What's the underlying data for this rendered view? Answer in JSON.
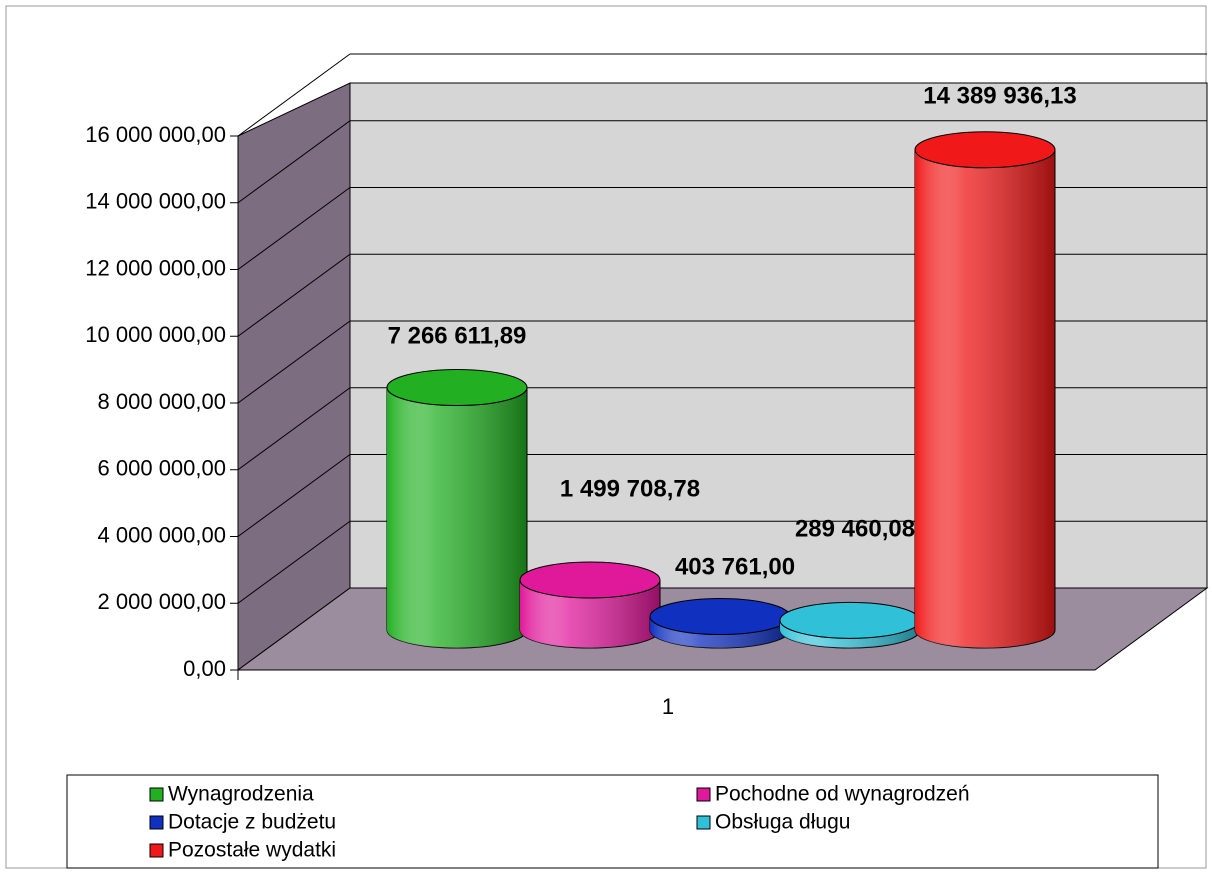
{
  "chart_data": {
    "type": "bar3d-cylinder",
    "categories": [
      "1"
    ],
    "series": [
      {
        "name": "Wynagrodzenia",
        "color": "#22b022",
        "values": [
          7266611.89
        ],
        "value_labels": [
          "7 266 611,89"
        ]
      },
      {
        "name": "Pochodne od wynagrodzeń",
        "color": "#e0189a",
        "values": [
          1499708.78
        ],
        "value_labels": [
          "1 499 708,78"
        ]
      },
      {
        "name": "Dotacje z budżetu",
        "color": "#1030c0",
        "values": [
          403761.0
        ],
        "value_labels": [
          "403 761,00"
        ]
      },
      {
        "name": "Obsługa długu",
        "color": "#30c0d8",
        "values": [
          289460.08
        ],
        "value_labels": [
          "289 460,08"
        ]
      },
      {
        "name": "Pozostałe wydatki",
        "color": "#f01818",
        "values": [
          14389936.13
        ],
        "value_labels": [
          "14 389 936,13"
        ]
      }
    ],
    "ylim": [
      0,
      16000000
    ],
    "yticks": [
      {
        "value": 0,
        "label": "0,00"
      },
      {
        "value": 2000000,
        "label": "2 000 000,00"
      },
      {
        "value": 4000000,
        "label": "4 000 000,00"
      },
      {
        "value": 6000000,
        "label": "6 000 000,00"
      },
      {
        "value": 8000000,
        "label": "8 000 000,00"
      },
      {
        "value": 10000000,
        "label": "10 000 000,00"
      },
      {
        "value": 12000000,
        "label": "12 000 000,00"
      },
      {
        "value": 14000000,
        "label": "14 000 000,00"
      },
      {
        "value": 16000000,
        "label": "16 000 000,00"
      }
    ],
    "grid": true
  }
}
